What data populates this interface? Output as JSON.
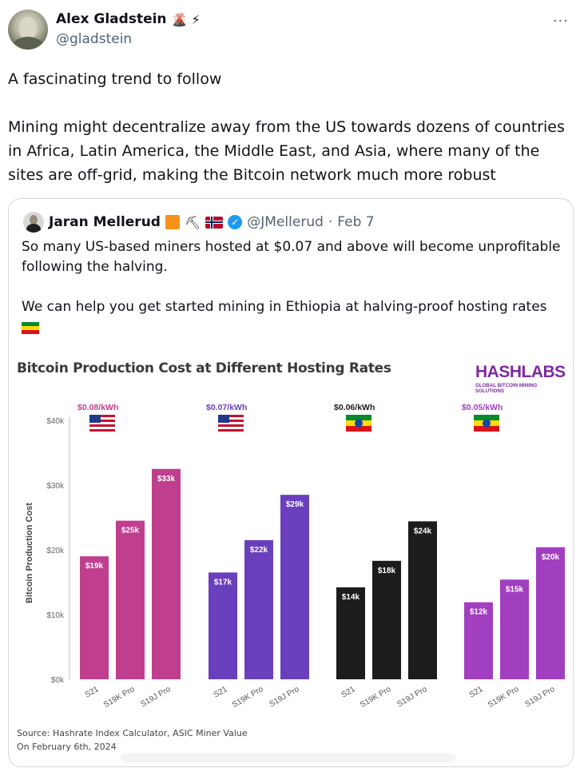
{
  "author": {
    "display_name": "Alex Gladstein",
    "name_emojis": "🌋 ⚡",
    "handle": "@gladstein",
    "more_icon": "more-horizontal-icon"
  },
  "tweet": {
    "line1": "A fascinating trend to follow",
    "line2": "Mining might decentralize away from the US towards dozens of countries in Africa, Latin America, the Middle East, and Asia, where many of the sites are off-grid, making the Bitcoin network much more robust"
  },
  "quote": {
    "display_name": "Jaran Mellerud",
    "name_emoji_pick": "⛏",
    "handle": "@JMellerud",
    "dot": "·",
    "date": "Feb 7",
    "text1": "So many US-based miners hosted at $0.07 and above will become unprofitable following the halving.",
    "text2": "We can help you get started mining in Ethiopia at halving-proof hosting rates"
  },
  "logo": {
    "main": "HASHLABS",
    "sub": "GLOBAL BITCOIN MINING SOLUTIONS"
  },
  "chart_data": {
    "type": "bar",
    "title": "Bitcoin Production Cost at Different Hosting Rates",
    "ylabel": "Bitcoin Production Cost",
    "xlabel": "",
    "ylim": [
      0,
      40000
    ],
    "yticks": [
      "$0k",
      "$10k",
      "$20k",
      "$30k",
      "$40k"
    ],
    "grid": false,
    "categories": [
      "S21",
      "S19K Pro",
      "S19J Pro"
    ],
    "groups": [
      {
        "rate": "$0.08/kWh",
        "flag": "us-flag",
        "color": "#bf3f8e",
        "label_color": "#bf3f8e",
        "values": [
          19000,
          24500,
          32500
        ],
        "labels": [
          "$19k",
          "$25k",
          "$33k"
        ]
      },
      {
        "rate": "$0.07/kWh",
        "flag": "us-flag",
        "color": "#6a3fbd",
        "label_color": "#6a3fbd",
        "values": [
          16500,
          21500,
          28500
        ],
        "labels": [
          "$17k",
          "$22k",
          "$29k"
        ]
      },
      {
        "rate": "$0.06/kWh",
        "flag": "ethiopia-flag",
        "color": "#1c1c1c",
        "label_color": "#1c1c1c",
        "values": [
          14200,
          18300,
          24400
        ],
        "labels": [
          "$14k",
          "$18k",
          "$24k"
        ]
      },
      {
        "rate": "$0.05/kWh",
        "flag": "ethiopia-flag",
        "color": "#a13fc0",
        "label_color": "#a13fc0",
        "values": [
          11900,
          15400,
          20400
        ],
        "labels": [
          "$12k",
          "$15k",
          "$20k"
        ]
      }
    ],
    "source_line1": "Source: Hashrate Index Calculator, ASIC Miner Value",
    "source_line2": "On February 6th, 2024"
  }
}
